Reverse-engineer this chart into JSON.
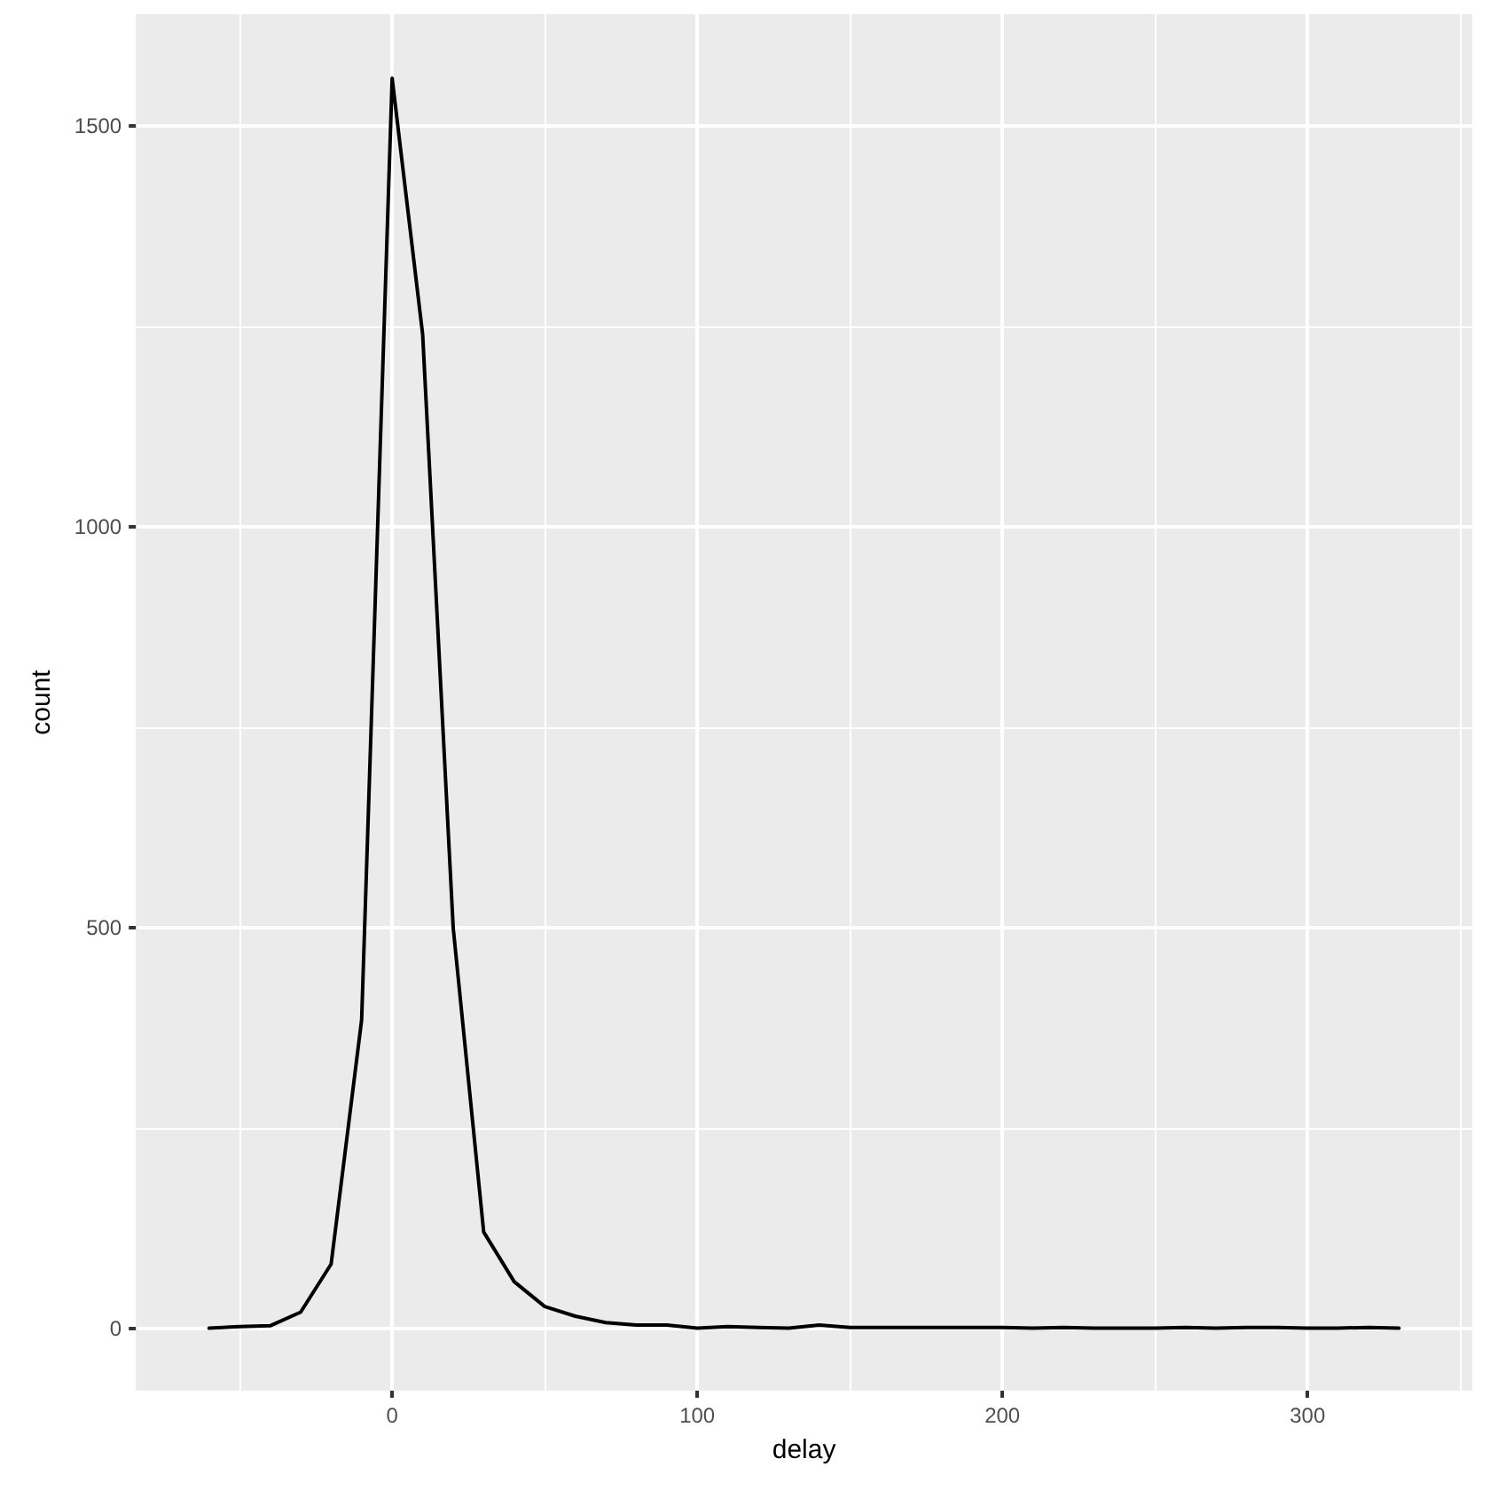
{
  "chart_data": {
    "type": "line",
    "xlabel": "delay",
    "ylabel": "count",
    "x": [
      -60,
      -50,
      -40,
      -30,
      -20,
      -10,
      0,
      10,
      20,
      30,
      40,
      50,
      60,
      70,
      80,
      90,
      100,
      110,
      120,
      130,
      140,
      150,
      160,
      170,
      180,
      190,
      200,
      210,
      220,
      230,
      240,
      250,
      260,
      270,
      280,
      290,
      300,
      310,
      320,
      330
    ],
    "series": [
      {
        "color": "#000000",
        "values": [
          0,
          2,
          3,
          20,
          80,
          385,
          1560,
          1240,
          500,
          120,
          58,
          27,
          15,
          7,
          4,
          4,
          0,
          2,
          1,
          0,
          4,
          1,
          1,
          1,
          1,
          1,
          1,
          0,
          1,
          0,
          0,
          0,
          1,
          0,
          1,
          1,
          0,
          0,
          1,
          0
        ]
      }
    ],
    "xlim": [
      -84,
      354
    ],
    "xticks": [
      0,
      100,
      200,
      300
    ],
    "ylim": [
      -78,
      1640
    ],
    "yticks": [
      0,
      500,
      1000,
      1500
    ],
    "grid": true,
    "marker": "none",
    "line_style": "solid"
  }
}
